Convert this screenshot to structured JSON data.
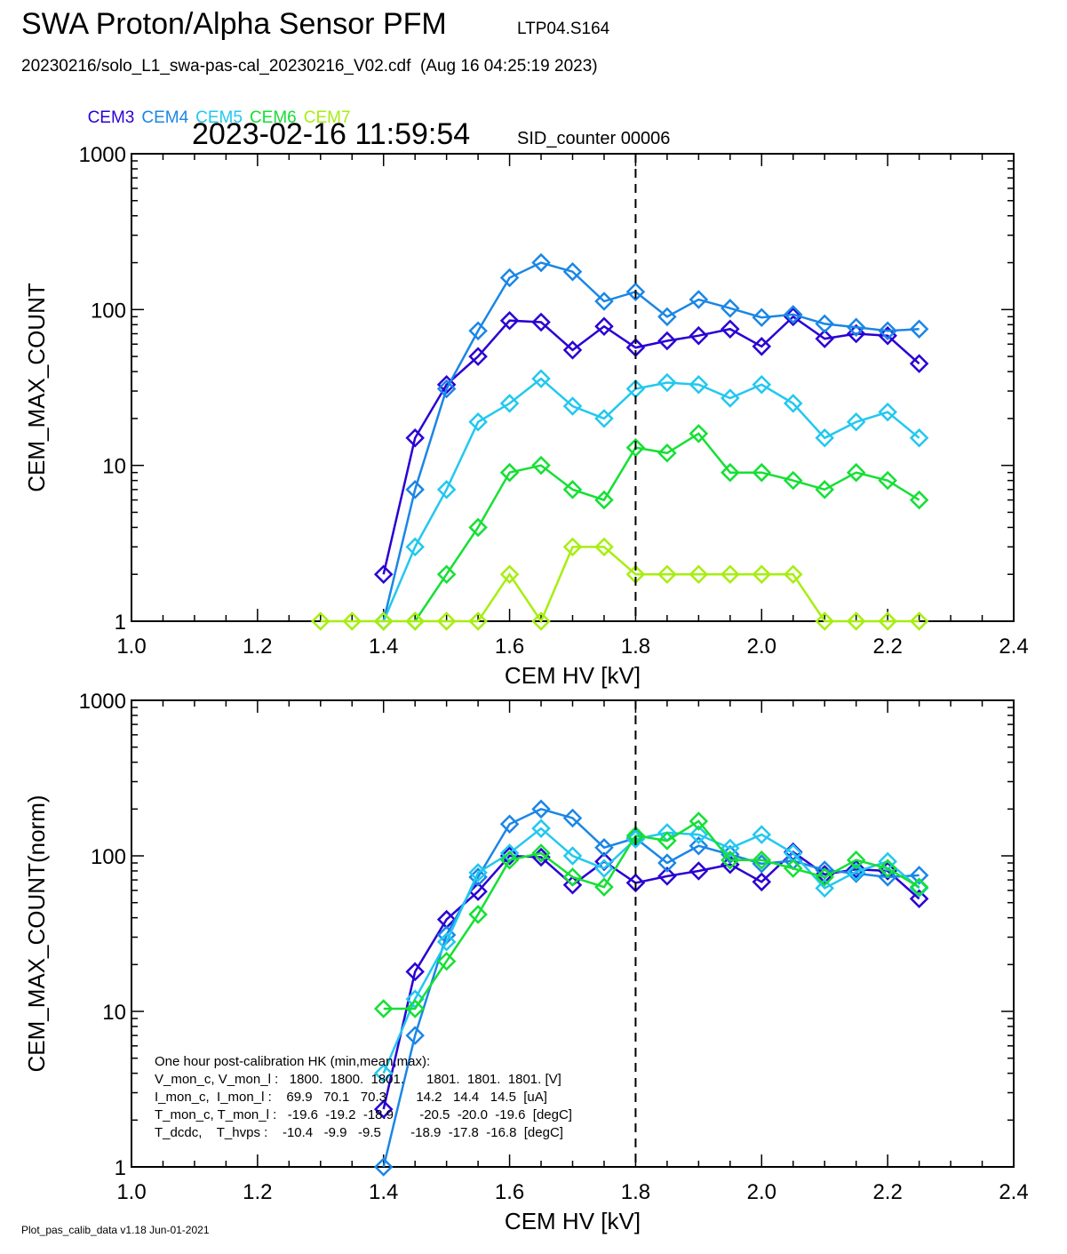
{
  "header": {
    "title": "SWA Proton/Alpha Sensor PFM",
    "title_tag": "LTP04.S164",
    "subtitle": "20230216/solo_L1_swa-pas-cal_20230216_V02.cdf  (Aug 16 04:25:19 2023)",
    "timestamp": "2023-02-16 11:59:54",
    "sid_counter": "SID_counter 00006"
  },
  "footer": "Plot_pas_calib_data v1.18 Jun-01-2021",
  "colors": {
    "CEM3": "#2a00d4",
    "CEM4": "#1a86e6",
    "CEM5": "#22c8ee",
    "CEM6": "#14e034",
    "CEM7": "#a6ee10",
    "marker_line": "#000000"
  },
  "legend": [
    "CEM3",
    "CEM4",
    "CEM5",
    "CEM6",
    "CEM7"
  ],
  "hk": {
    "title": "One hour post-calibration HK (min,mean,max):",
    "rows": [
      "V_mon_c, V_mon_l :   1800.  1800.  1801.      1801.  1801.  1801. [V]",
      "I_mon_c,  I_mon_l :    69.9   70.1   70.3        14.2   14.4   14.5  [uA]",
      "T_mon_c, T_mon_l :   -19.6  -19.2  -18.9       -20.5  -20.0  -19.6  [degC]",
      "T_dcdc,    T_hvps :    -10.4   -9.9   -9.5        -18.9  -17.8  -16.8  [degC]"
    ]
  },
  "chart_data": [
    {
      "type": "line",
      "title": "",
      "xlabel": "CEM HV [kV]",
      "ylabel": "CEM_MAX_COUNT",
      "xlim": [
        1.0,
        2.4
      ],
      "ylim": [
        1,
        1000
      ],
      "yscale": "log",
      "x_ticks": [
        "1.0",
        "1.2",
        "1.4",
        "1.6",
        "1.8",
        "2.0",
        "2.2",
        "2.4"
      ],
      "y_ticks": [
        "1",
        "10",
        "100",
        "1000"
      ],
      "vline_x": 1.8,
      "series": [
        {
          "name": "CEM3",
          "x": [
            1.4,
            1.45,
            1.5,
            1.55,
            1.6,
            1.65,
            1.7,
            1.75,
            1.8,
            1.85,
            1.9,
            1.95,
            2.0,
            2.05,
            2.1,
            2.15,
            2.2,
            2.25
          ],
          "values": [
            2,
            15,
            33,
            50,
            85,
            83,
            55,
            78,
            57,
            63,
            68,
            75,
            58,
            90,
            65,
            70,
            68,
            45
          ]
        },
        {
          "name": "CEM4",
          "x": [
            1.4,
            1.45,
            1.5,
            1.55,
            1.6,
            1.65,
            1.7,
            1.75,
            1.8,
            1.85,
            1.9,
            1.95,
            2.0,
            2.05,
            2.1,
            2.15,
            2.2,
            2.25
          ],
          "values": [
            1,
            7,
            31,
            73,
            160,
            200,
            175,
            113,
            130,
            90,
            116,
            102,
            89,
            93,
            81,
            77,
            73,
            75
          ]
        },
        {
          "name": "CEM5",
          "x": [
            1.4,
            1.45,
            1.5,
            1.55,
            1.6,
            1.65,
            1.7,
            1.75,
            1.8,
            1.85,
            1.9,
            1.95,
            2.0,
            2.05,
            2.1,
            2.15,
            2.2,
            2.25
          ],
          "values": [
            1,
            3,
            7,
            19,
            25,
            36,
            24,
            20,
            31,
            34,
            33,
            27,
            33,
            25,
            15,
            19,
            22,
            15
          ]
        },
        {
          "name": "CEM6",
          "x": [
            1.45,
            1.5,
            1.55,
            1.6,
            1.65,
            1.7,
            1.75,
            1.8,
            1.85,
            1.9,
            1.95,
            2.0,
            2.05,
            2.1,
            2.15,
            2.2,
            2.25
          ],
          "values": [
            1,
            2,
            4,
            9,
            10,
            7,
            6,
            13,
            12,
            16,
            9,
            9,
            8,
            7,
            9,
            8,
            6
          ]
        },
        {
          "name": "CEM7",
          "x": [
            1.3,
            1.35,
            1.4,
            1.45,
            1.5,
            1.55,
            1.6,
            1.65,
            1.7,
            1.75,
            1.8,
            1.85,
            1.9,
            1.95,
            2.0,
            2.05,
            2.1,
            2.15,
            2.2,
            2.25
          ],
          "values": [
            1,
            1,
            1,
            1,
            1,
            1,
            2,
            1,
            3,
            3,
            2,
            2,
            2,
            2,
            2,
            2,
            1,
            1,
            1,
            1
          ]
        }
      ]
    },
    {
      "type": "line",
      "title": "",
      "xlabel": "CEM HV [kV]",
      "ylabel": "CEM_MAX_COUNT(norm)",
      "xlim": [
        1.0,
        2.4
      ],
      "ylim": [
        1,
        1000
      ],
      "yscale": "log",
      "x_ticks": [
        "1.0",
        "1.2",
        "1.4",
        "1.6",
        "1.8",
        "2.0",
        "2.2",
        "2.4"
      ],
      "y_ticks": [
        "1",
        "10",
        "100",
        "1000"
      ],
      "vline_x": 1.8,
      "series": [
        {
          "name": "CEM3",
          "x": [
            1.4,
            1.45,
            1.5,
            1.55,
            1.6,
            1.65,
            1.7,
            1.75,
            1.8,
            1.85,
            1.9,
            1.95,
            2.0,
            2.05,
            2.1,
            2.15,
            2.2,
            2.25
          ],
          "values": [
            2.35,
            18,
            39,
            59,
            100,
            98,
            65,
            92,
            67,
            74,
            80,
            88,
            68,
            106,
            76,
            82,
            80,
            53
          ]
        },
        {
          "name": "CEM4",
          "x": [
            1.4,
            1.45,
            1.5,
            1.55,
            1.6,
            1.65,
            1.7,
            1.75,
            1.8,
            1.85,
            1.9,
            1.95,
            2.0,
            2.05,
            2.1,
            2.15,
            2.2,
            2.25
          ],
          "values": [
            1,
            7,
            31,
            73,
            160,
            200,
            175,
            113,
            130,
            90,
            116,
            102,
            89,
            93,
            81,
            77,
            73,
            75
          ]
        },
        {
          "name": "CEM5",
          "x": [
            1.4,
            1.45,
            1.5,
            1.55,
            1.6,
            1.65,
            1.7,
            1.75,
            1.8,
            1.85,
            1.9,
            1.95,
            2.0,
            2.05,
            2.1,
            2.15,
            2.2,
            2.25
          ],
          "values": [
            4,
            12,
            28,
            78,
            104,
            150,
            100,
            83,
            128,
            141,
            137,
            112,
            137,
            104,
            62,
            79,
            92,
            62
          ]
        },
        {
          "name": "CEM6",
          "x": [
            1.4,
            1.45,
            1.5,
            1.55,
            1.6,
            1.65,
            1.7,
            1.75,
            1.8,
            1.85,
            1.9,
            1.95,
            2.0,
            2.05,
            2.1,
            2.15,
            2.2,
            2.25
          ],
          "values": [
            10.4,
            10.4,
            21,
            42,
            94,
            104,
            73,
            63,
            135,
            125,
            167,
            94,
            94,
            83,
            73,
            94,
            83,
            63
          ]
        }
      ]
    }
  ]
}
